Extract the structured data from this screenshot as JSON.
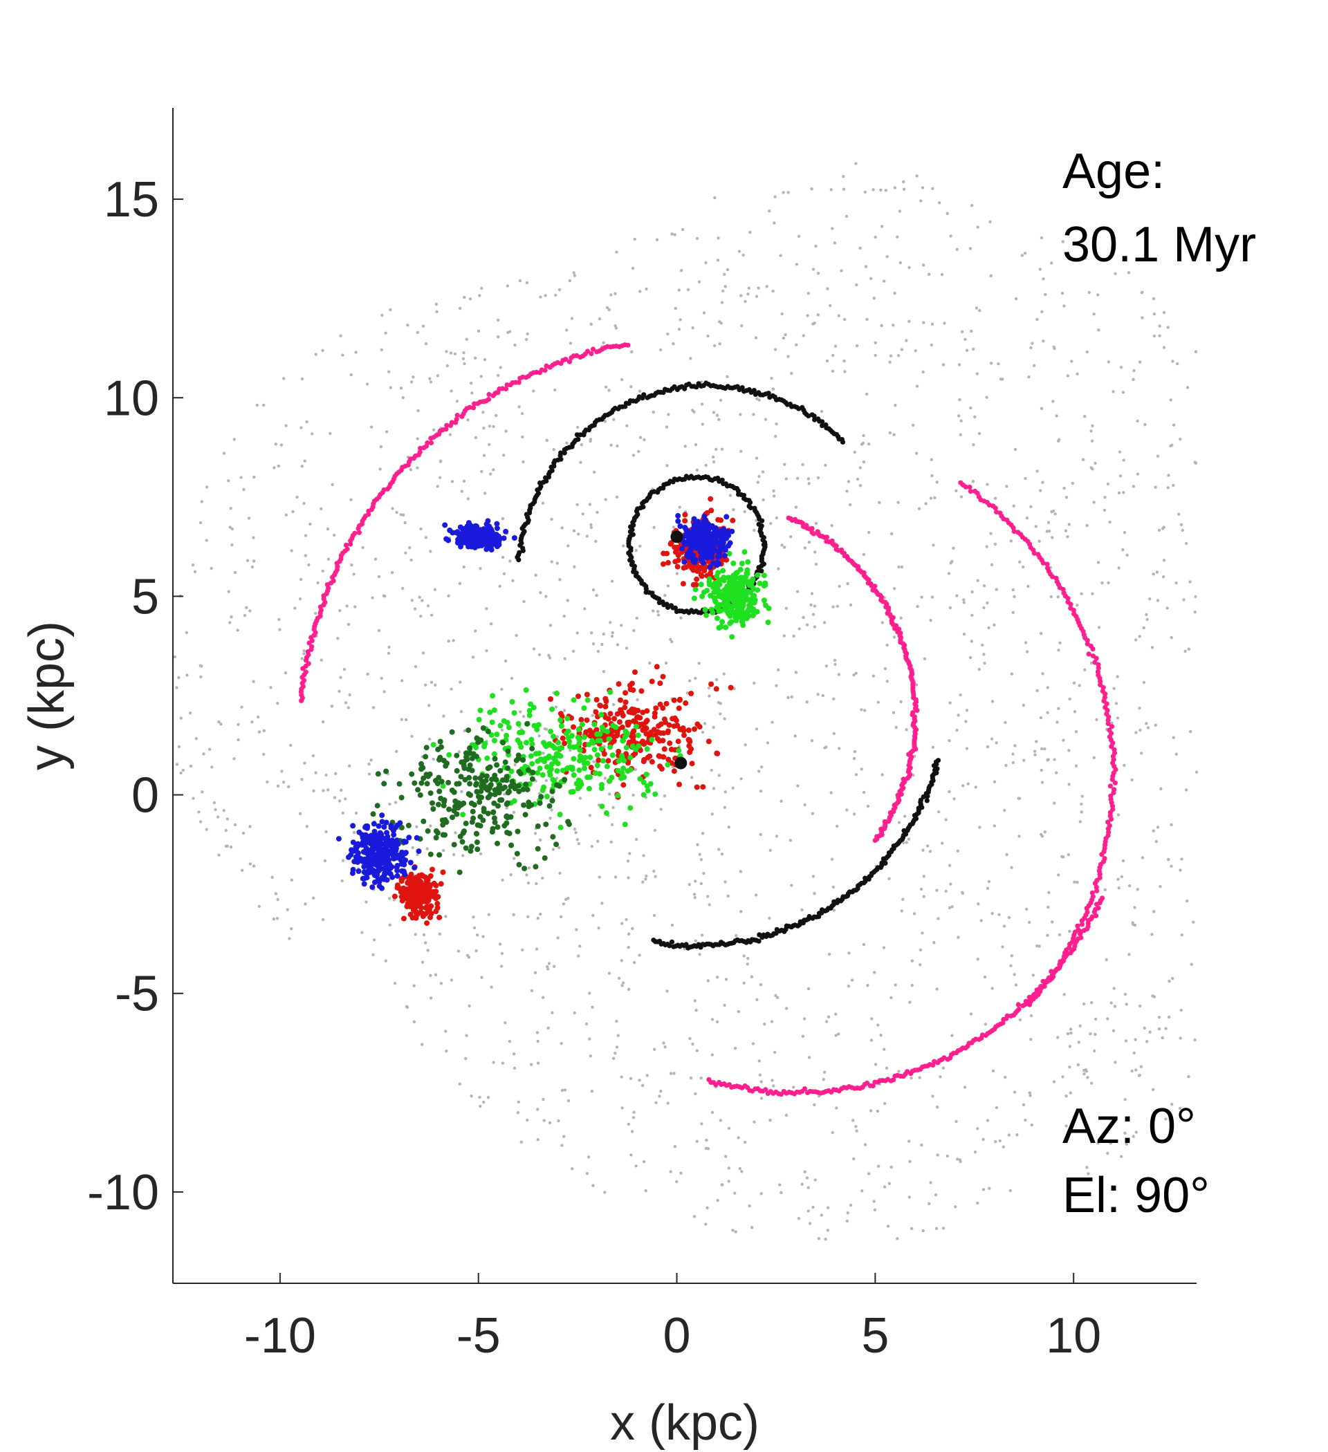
{
  "chart_data": {
    "type": "scatter",
    "title": "",
    "xlabel": "x (kpc)",
    "ylabel": "y (kpc)",
    "xlim": [
      -12.7,
      13.1
    ],
    "ylim": [
      -12.3,
      17.3
    ],
    "xticks": [
      -10,
      -5,
      0,
      5,
      10
    ],
    "yticks": [
      -10,
      -5,
      0,
      5,
      10,
      15
    ],
    "xtick_labels": [
      "-10",
      "-5",
      "0",
      "5",
      "10"
    ],
    "ytick_labels": [
      "-10",
      "-5",
      "0",
      "5",
      "10",
      "15"
    ],
    "grid": false,
    "legend": "none",
    "annotations": {
      "age_label": "Age:",
      "age_value": "30.1 Myr",
      "azimuth": "Az: 0°",
      "elevation": "El: 90°"
    },
    "colors": {
      "gray": "#b4b4b4",
      "pink": "#ff1f8e",
      "black": "#111111",
      "red": "#e0140f",
      "green": "#1fe01f",
      "darkgreen": "#1f6b1f",
      "blue": "#1a1adc"
    },
    "series": [
      {
        "color": "gray",
        "kind": "disk",
        "lobes": [
          {
            "center": [
              4.0,
              2.0
            ],
            "radius": 13.4
          },
          {
            "center": [
              -3.5,
              3.5
            ],
            "radius": 9.5
          },
          {
            "center": [
              5.0,
              13.6
            ],
            "radius": 2.5
          }
        ],
        "values": []
      },
      {
        "color": "pink",
        "kind": "arcs",
        "arcs": [
          {
            "center": [
              0.5,
              1.5
            ],
            "radius": 10.0,
            "start_deg": 100,
            "end_deg": 175
          },
          {
            "center": [
              2.0,
              0.5
            ],
            "radius": 9.0,
            "start_deg": 55,
            "end_deg": -40
          },
          {
            "center": [
              3.0,
              1.0
            ],
            "radius": 8.5,
            "start_deg": -25,
            "end_deg": -105
          },
          {
            "center": [
              0.5,
              2.0
            ],
            "radius": 5.5,
            "start_deg": 65,
            "end_deg": -35
          }
        ],
        "values": []
      },
      {
        "color": "black",
        "kind": "arcs",
        "arcs": [
          {
            "center": [
              0.5,
              2.5
            ],
            "radius": 6.3,
            "start_deg": -15,
            "end_deg": -100
          },
          {
            "center": [
              0.5,
              6.3
            ],
            "radius": 1.7,
            "start_deg": 0,
            "end_deg": 360
          },
          {
            "center": [
              0.8,
              5.5
            ],
            "radius": 4.8,
            "start_deg": 45,
            "end_deg": 175
          }
        ],
        "values": []
      },
      {
        "color": "red",
        "kind": "cloud",
        "clouds": [
          {
            "center": [
              -1.0,
              1.5
            ],
            "spread": [
              3.5,
              2.5
            ]
          },
          {
            "center": [
              -6.5,
              -2.5
            ],
            "spread": [
              0.9,
              1.0
            ]
          },
          {
            "center": [
              0.6,
              6.2
            ],
            "spread": [
              1.5,
              1.5
            ]
          }
        ],
        "values": []
      },
      {
        "color": "green",
        "kind": "cloud",
        "clouds": [
          {
            "center": [
              -3.0,
              1.0
            ],
            "spread": [
              5.0,
              2.8
            ]
          },
          {
            "center": [
              1.5,
              5.0
            ],
            "spread": [
              1.5,
              1.5
            ]
          }
        ],
        "values": []
      },
      {
        "color": "darkgreen",
        "kind": "cloud",
        "clouds": [
          {
            "center": [
              -5.0,
              0.0
            ],
            "spread": [
              4.0,
              3.0
            ]
          }
        ],
        "values": []
      },
      {
        "color": "blue",
        "kind": "cloud",
        "clouds": [
          {
            "center": [
              0.7,
              6.4
            ],
            "spread": [
              1.3,
              1.0
            ]
          },
          {
            "center": [
              -7.5,
              -1.5
            ],
            "spread": [
              1.5,
              1.5
            ]
          },
          {
            "center": [
              -5.0,
              6.5
            ],
            "spread": [
              1.2,
              0.6
            ]
          }
        ],
        "values": []
      }
    ],
    "markers": [
      {
        "x": 0.0,
        "y": 6.5,
        "color": "black"
      },
      {
        "x": 0.1,
        "y": 0.8,
        "color": "black"
      }
    ]
  }
}
